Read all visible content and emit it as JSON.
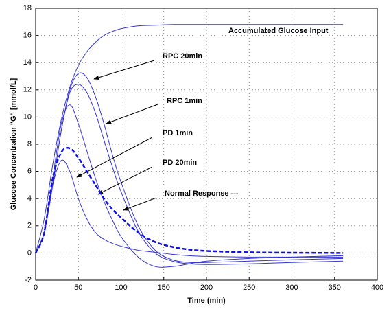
{
  "chart_data": {
    "type": "line",
    "xlabel": "Time (min)",
    "ylabel": "Glucose Concentration \"G\" [mmol/L]",
    "x": [
      0,
      10,
      20,
      30,
      40,
      50,
      60,
      70,
      80,
      90,
      100,
      120,
      140,
      160,
      180,
      200,
      250,
      300,
      360
    ],
    "series": [
      {
        "name": "Accumulated Glucose Input",
        "color": "#3535d0",
        "dashed": false,
        "values": [
          0,
          2.5,
          6.5,
          9.8,
          12.2,
          13.8,
          14.8,
          15.5,
          16.0,
          16.3,
          16.5,
          16.7,
          16.75,
          16.8,
          16.8,
          16.8,
          16.8,
          16.8,
          16.8
        ]
      },
      {
        "name": "RPC 20min",
        "color": "#3535d0",
        "dashed": false,
        "values": [
          0,
          1.5,
          5,
          9,
          12,
          13.2,
          12.9,
          11.5,
          9.5,
          7.2,
          5.2,
          2,
          0.2,
          -0.5,
          -0.7,
          -0.7,
          -0.6,
          -0.5,
          -0.4
        ]
      },
      {
        "name": "RPC 1min",
        "color": "#3535d0",
        "dashed": false,
        "values": [
          0,
          1.5,
          5,
          9,
          11.8,
          12.4,
          11.8,
          10.3,
          8.3,
          6.3,
          4.5,
          1.6,
          0,
          -0.6,
          -0.8,
          -0.85,
          -0.8,
          -0.7,
          -0.6
        ]
      },
      {
        "name": "PD 1min",
        "color": "#3535d0",
        "dashed": false,
        "values": [
          0,
          1.5,
          5.5,
          9.5,
          10.9,
          9.5,
          7.5,
          5.5,
          3.8,
          2.4,
          1.2,
          -0.3,
          -1.0,
          -1.0,
          -0.8,
          -0.6,
          -0.4,
          -0.3,
          -0.2
        ]
      },
      {
        "name": "PD 20min",
        "color": "#3535d0",
        "dashed": false,
        "values": [
          0,
          1.5,
          5,
          6.8,
          6.0,
          4.0,
          2.5,
          1.5,
          1.0,
          0.7,
          0.5,
          0.2,
          0.05,
          -0.1,
          -0.2,
          -0.25,
          -0.3,
          -0.3,
          -0.3
        ]
      },
      {
        "name": "Normal Response ---",
        "color": "#1010e0",
        "dashed": true,
        "values": [
          0,
          1.5,
          5.5,
          7.4,
          7.7,
          7.0,
          6.0,
          5.0,
          4.0,
          3.2,
          2.6,
          1.5,
          0.8,
          0.45,
          0.25,
          0.15,
          0.05,
          0.02,
          0
        ]
      }
    ],
    "xlim": [
      0,
      400
    ],
    "xticks": [
      0,
      50,
      100,
      150,
      200,
      250,
      300,
      350,
      400
    ],
    "ylim": [
      -2,
      18
    ],
    "yticks": [
      -2,
      0,
      2,
      4,
      6,
      8,
      10,
      12,
      14,
      16,
      18
    ],
    "grid": true
  }
}
